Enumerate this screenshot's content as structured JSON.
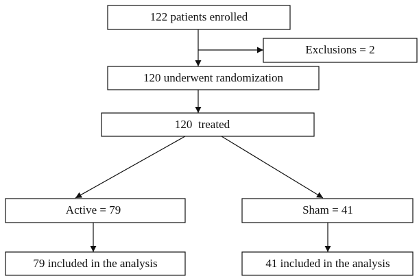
{
  "nodes": [
    {
      "label": "122 patients enrolled"
    },
    {
      "label": "Exclusions = 2"
    },
    {
      "label": "120 underwent randomization"
    },
    {
      "label": "120  treated"
    },
    {
      "label": "Active = 79"
    },
    {
      "label": "Sham = 41"
    },
    {
      "label": "79 included in the analysis"
    },
    {
      "label": "41 included in the analysis"
    }
  ]
}
